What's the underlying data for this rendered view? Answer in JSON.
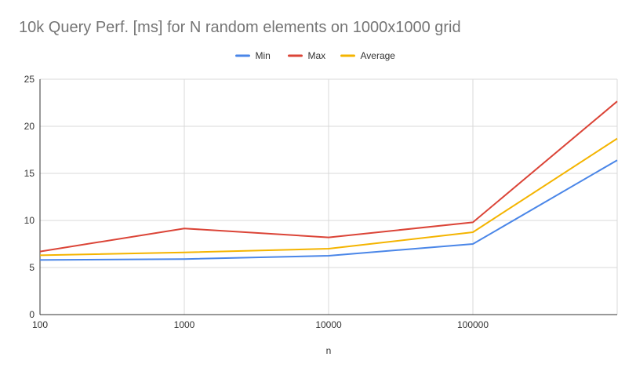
{
  "chart_data": {
    "type": "line",
    "title": "10k Query Perf. [ms] for N random elements on 1000x1000 grid",
    "xlabel": "n",
    "ylabel": "",
    "categories": [
      "100",
      "1000",
      "10000",
      "100000",
      ""
    ],
    "ylim": [
      0,
      25
    ],
    "yticks": [
      0,
      5,
      10,
      15,
      20,
      25
    ],
    "grid": true,
    "legend_position": "top",
    "series": [
      {
        "name": "Min",
        "color": "#4a86e8",
        "values": [
          5.8,
          5.9,
          6.25,
          7.5,
          16.4
        ]
      },
      {
        "name": "Max",
        "color": "#db4437",
        "values": [
          6.7,
          9.15,
          8.2,
          9.8,
          22.65
        ]
      },
      {
        "name": "Average",
        "color": "#f4b400",
        "values": [
          6.3,
          6.6,
          7.0,
          8.75,
          18.7
        ]
      }
    ]
  }
}
